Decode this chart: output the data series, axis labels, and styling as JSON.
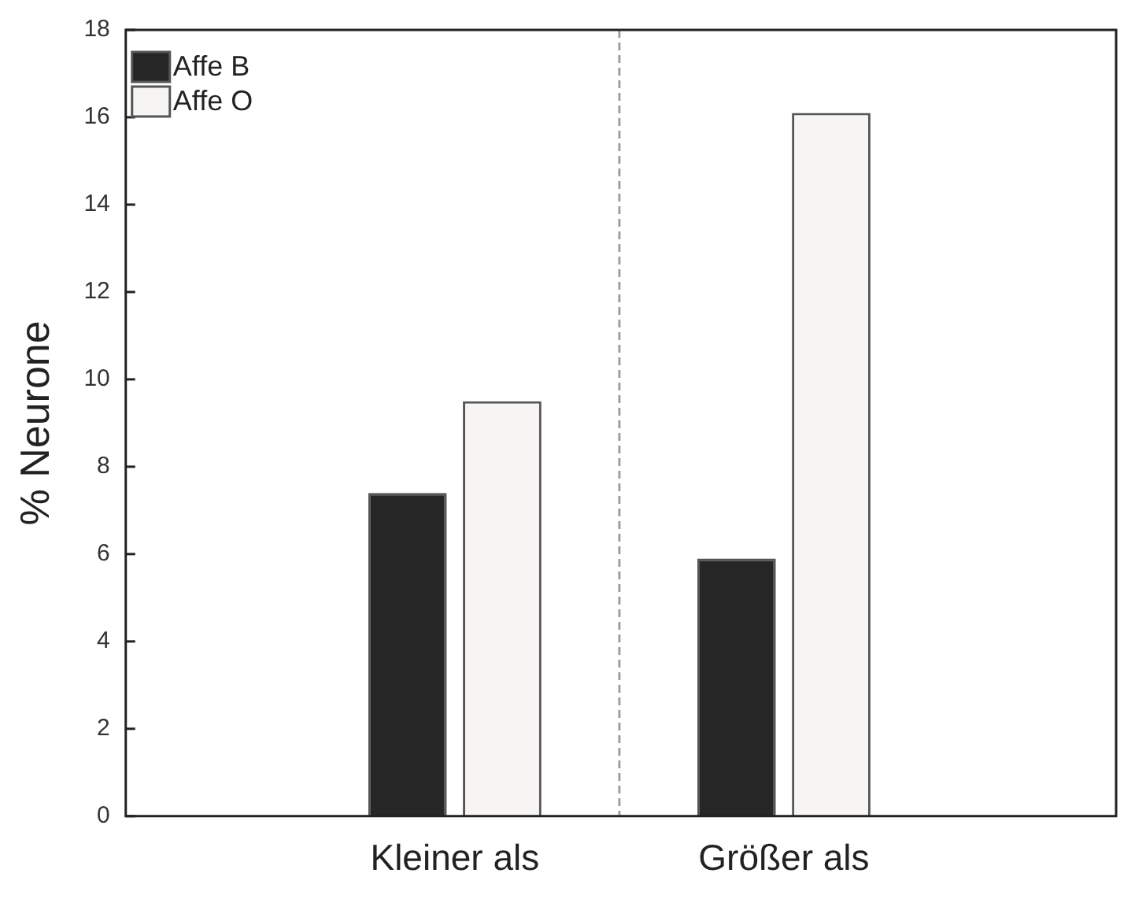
{
  "chart_data": {
    "type": "bar",
    "ylabel": "% Neurone",
    "categories": [
      null,
      "Kleiner als",
      "Größer als",
      null
    ],
    "ylim": [
      0,
      18
    ],
    "yticks": [
      0,
      2,
      4,
      6,
      8,
      10,
      12,
      14,
      16,
      18
    ],
    "series": [
      {
        "name": "Affe B",
        "color": "#262626",
        "values": [
          null,
          7.4,
          5.9,
          null
        ]
      },
      {
        "name": "Affe O",
        "color": "#f7f5f3",
        "values": [
          null,
          9.5,
          16.1,
          null
        ]
      }
    ],
    "legend": "top left",
    "grid": false
  }
}
